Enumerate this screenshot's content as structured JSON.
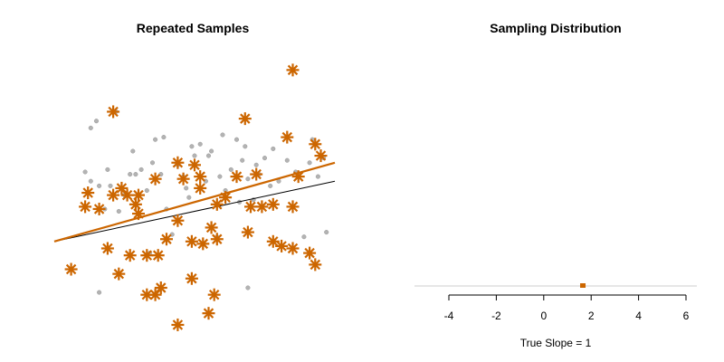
{
  "chart_data": [
    {
      "type": "scatter",
      "title": "Repeated Samples",
      "xlabel": "",
      "ylabel": "",
      "xlim": [
        0,
        10
      ],
      "ylim": [
        -4,
        6
      ],
      "axes_shown": false,
      "colors": {
        "population": "#b3b3b3",
        "sample": "#cc6600",
        "true_line": "#000000",
        "fit_line": "#cc6600"
      },
      "population_points": [
        [
          1.5,
          3.2
        ],
        [
          1.3,
          2.9
        ],
        [
          1.1,
          1.0
        ],
        [
          1.3,
          0.6
        ],
        [
          1.6,
          0.4
        ],
        [
          1.9,
          1.1
        ],
        [
          2.0,
          0.4
        ],
        [
          2.3,
          -0.7
        ],
        [
          2.5,
          0.0
        ],
        [
          2.7,
          0.9
        ],
        [
          2.2,
          3.6
        ],
        [
          2.8,
          1.9
        ],
        [
          3.1,
          1.1
        ],
        [
          3.3,
          0.2
        ],
        [
          3.5,
          1.4
        ],
        [
          3.6,
          2.4
        ],
        [
          3.8,
          0.9
        ],
        [
          4.0,
          -0.6
        ],
        [
          4.2,
          -1.7
        ],
        [
          4.4,
          1.3
        ],
        [
          4.6,
          0.8
        ],
        [
          4.7,
          0.3
        ],
        [
          4.8,
          -0.1
        ],
        [
          5.0,
          1.7
        ],
        [
          5.2,
          2.2
        ],
        [
          5.4,
          0.6
        ],
        [
          5.6,
          1.9
        ],
        [
          5.8,
          -1.8
        ],
        [
          5.9,
          0.8
        ],
        [
          6.1,
          0.2
        ],
        [
          6.3,
          1.1
        ],
        [
          6.5,
          2.4
        ],
        [
          6.7,
          1.5
        ],
        [
          6.9,
          0.7
        ],
        [
          7.1,
          -0.2
        ],
        [
          7.3,
          0.9
        ],
        [
          7.5,
          1.6
        ],
        [
          7.7,
          0.4
        ],
        [
          7.8,
          2.0
        ],
        [
          8.0,
          0.6
        ],
        [
          8.3,
          1.5
        ],
        [
          8.6,
          1.0
        ],
        [
          8.9,
          -1.8
        ],
        [
          9.1,
          1.4
        ],
        [
          9.4,
          0.8
        ],
        [
          3.9,
          2.5
        ],
        [
          4.9,
          2.1
        ],
        [
          6.0,
          2.6
        ],
        [
          7.2,
          1.3
        ],
        [
          1.8,
          -0.6
        ],
        [
          1.6,
          -4.2
        ],
        [
          6.8,
          2.1
        ],
        [
          9.7,
          -1.6
        ],
        [
          6.9,
          -4.0
        ],
        [
          3.4,
          -2.5
        ],
        [
          9.2,
          2.4
        ],
        [
          9.6,
          1.6
        ],
        [
          6.6,
          -0.3
        ],
        [
          5.5,
          1.7
        ],
        [
          2.9,
          0.9
        ]
      ],
      "sample_points": [
        [
          8.5,
          5.4
        ],
        [
          2.1,
          3.6
        ],
        [
          6.8,
          3.3
        ],
        [
          8.3,
          2.5
        ],
        [
          9.3,
          2.2
        ],
        [
          9.5,
          1.7
        ],
        [
          4.4,
          1.4
        ],
        [
          5.0,
          1.3
        ],
        [
          3.6,
          0.7
        ],
        [
          4.6,
          0.7
        ],
        [
          5.2,
          0.8
        ],
        [
          6.5,
          0.8
        ],
        [
          7.2,
          0.9
        ],
        [
          8.7,
          0.8
        ],
        [
          2.4,
          0.3
        ],
        [
          1.2,
          0.1
        ],
        [
          2.1,
          0.0
        ],
        [
          2.6,
          0.0
        ],
        [
          3.0,
          0.0
        ],
        [
          2.9,
          -0.4
        ],
        [
          1.6,
          -0.6
        ],
        [
          3.0,
          -0.8
        ],
        [
          5.2,
          0.3
        ],
        [
          5.8,
          -0.4
        ],
        [
          6.1,
          -0.1
        ],
        [
          7.0,
          -0.5
        ],
        [
          7.4,
          -0.5
        ],
        [
          8.5,
          -0.5
        ],
        [
          7.8,
          -0.4
        ],
        [
          4.4,
          -1.1
        ],
        [
          5.6,
          -1.4
        ],
        [
          6.9,
          -1.6
        ],
        [
          4.0,
          -1.9
        ],
        [
          4.9,
          -2.0
        ],
        [
          5.3,
          -2.1
        ],
        [
          5.8,
          -1.9
        ],
        [
          7.8,
          -2.0
        ],
        [
          8.1,
          -2.2
        ],
        [
          3.7,
          -2.6
        ],
        [
          1.9,
          -2.3
        ],
        [
          2.7,
          -2.6
        ],
        [
          3.3,
          -2.6
        ],
        [
          8.5,
          -2.3
        ],
        [
          9.1,
          -2.5
        ],
        [
          0.6,
          -3.2
        ],
        [
          2.3,
          -3.4
        ],
        [
          4.9,
          -3.6
        ],
        [
          3.8,
          -4.0
        ],
        [
          3.3,
          -4.3
        ],
        [
          3.6,
          -4.3
        ],
        [
          5.5,
          -5.1
        ],
        [
          4.4,
          -5.6
        ],
        [
          5.7,
          -4.3
        ],
        [
          9.3,
          -3.0
        ],
        [
          1.1,
          -0.5
        ]
      ],
      "true_line": {
        "x": [
          0,
          10
        ],
        "y": [
          -2.0,
          0.6
        ]
      },
      "fit_line": {
        "x": [
          0,
          10
        ],
        "y": [
          -2.0,
          1.4
        ]
      }
    },
    {
      "type": "scatter",
      "title": "Sampling Distribution",
      "xlabel": "True Slope = 1",
      "ylabel": "",
      "xlim": [
        -4,
        6
      ],
      "ylim": [
        0,
        1
      ],
      "x_ticks": [
        "-4",
        "-2",
        "0",
        "2",
        "4",
        "6"
      ],
      "x_tick_values": [
        -4,
        -2,
        0,
        2,
        4,
        6
      ],
      "baseline": true,
      "colors": {
        "marker": "#cc6600",
        "axis": "#000000",
        "baseline": "#cccccc"
      },
      "points": [
        {
          "x": 1.65,
          "y": 0
        }
      ]
    }
  ]
}
